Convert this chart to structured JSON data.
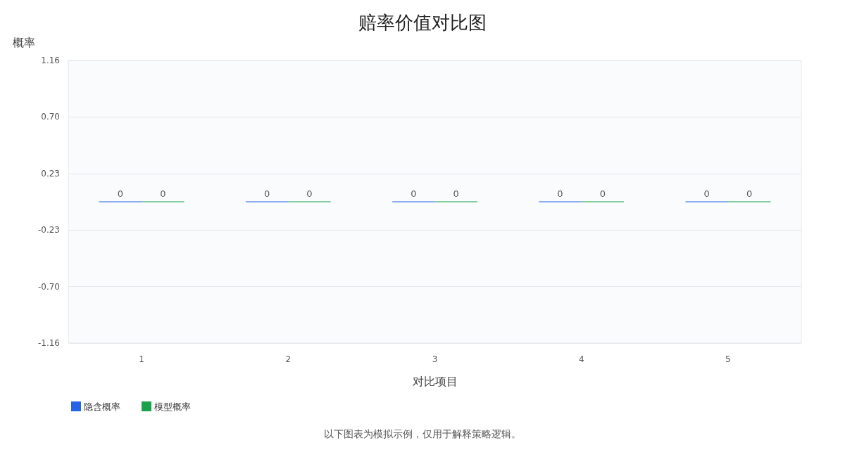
{
  "chart_data": {
    "type": "bar",
    "title": "赔率价值对比图",
    "ylabel": "概率",
    "xlabel": "对比项目",
    "categories": [
      "1",
      "2",
      "3",
      "4",
      "5"
    ],
    "series": [
      {
        "name": "隐含概率",
        "color": "#2563eb",
        "values": [
          0,
          0,
          0,
          0,
          0
        ]
      },
      {
        "name": "模型概率",
        "color": "#16a34a",
        "values": [
          0,
          0,
          0,
          0,
          0
        ]
      }
    ],
    "ylim": [
      -1.16,
      1.16
    ],
    "yticks": [
      -1.16,
      {
        "value": -0.696,
        "label": "-0.70"
      },
      {
        "value": -0.232,
        "label": "-0.23"
      },
      {
        "value": 0.232,
        "label": "0.23"
      },
      {
        "value": 0.696,
        "label": "0.70"
      },
      1.16
    ],
    "grid": "y",
    "legend": "bottom left",
    "data_labels": true,
    "annotations": [
      "以下图表为模拟示例，仅用于解释策略逻辑。"
    ]
  }
}
